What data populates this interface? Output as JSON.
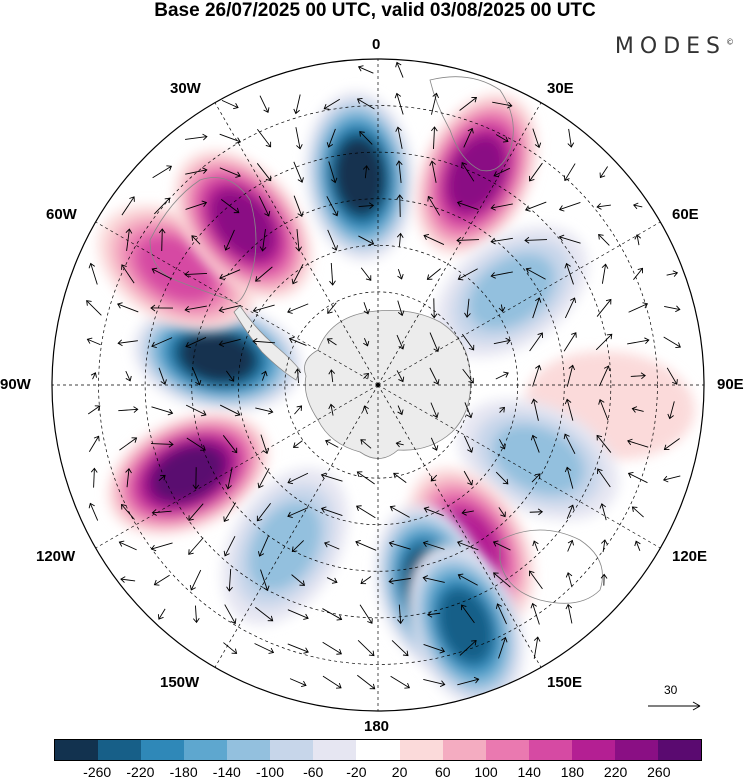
{
  "title": "Base 26/07/2025 00 UTC, valid 03/08/2025 00 UTC",
  "brand": "MODES",
  "brand_mark": "©",
  "map": {
    "projection": "south polar stereographic",
    "longitude_labels": {
      "0": "0",
      "30E": "30E",
      "60E": "60E",
      "90E": "90E",
      "120E": "120E",
      "150E": "150E",
      "180": "180",
      "150W": "150W",
      "120W": "120W",
      "90W": "90W",
      "60W": "60W",
      "30W": "30W"
    },
    "vector_reference": {
      "value": 30,
      "label": "30"
    },
    "anomaly_centers": [
      {
        "lon": -80,
        "lat": -55,
        "value": -300
      },
      {
        "lon": -60,
        "lat": -40,
        "value": 180
      },
      {
        "lon": -40,
        "lat": -45,
        "value": 240
      },
      {
        "lon": -5,
        "lat": -45,
        "value": -300
      },
      {
        "lon": 25,
        "lat": -40,
        "value": 260
      },
      {
        "lon": 55,
        "lat": -55,
        "value": -140
      },
      {
        "lon": 95,
        "lat": -40,
        "value": 60
      },
      {
        "lon": 115,
        "lat": -52,
        "value": -140
      },
      {
        "lon": 150,
        "lat": -50,
        "value": 220
      },
      {
        "lon": 165,
        "lat": -45,
        "value": -300
      },
      {
        "lon": 160,
        "lat": -35,
        "value": -260
      },
      {
        "lon": -115,
        "lat": -45,
        "value": 300
      },
      {
        "lon": -150,
        "lat": -50,
        "value": -140
      }
    ]
  },
  "colorbar": {
    "colors": [
      "#12324f",
      "#175f88",
      "#2f88b8",
      "#5ea7cf",
      "#93c0de",
      "#c7d6ea",
      "#e6e6f2",
      "#ffffff",
      "#fbdada",
      "#f4acc1",
      "#ea79b0",
      "#d64aa3",
      "#b41f93",
      "#8a0f84",
      "#5a0a70"
    ],
    "tick_labels": [
      "-260",
      "-220",
      "-180",
      "-140",
      "-100",
      "-60",
      "-20",
      "20",
      "60",
      "100",
      "140",
      "180",
      "220",
      "260"
    ]
  }
}
